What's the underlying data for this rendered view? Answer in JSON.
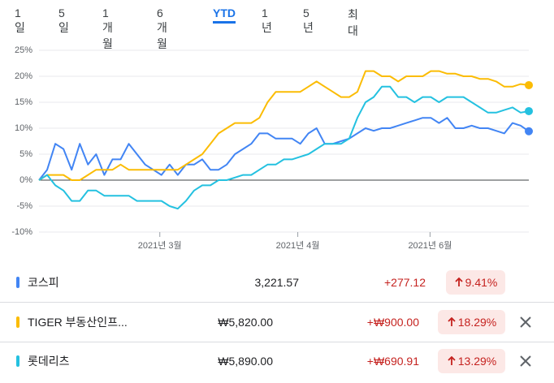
{
  "tabs": [
    "1일",
    "5일",
    "1개월",
    "6개월",
    "YTD",
    "1년",
    "5년",
    "최대"
  ],
  "active_tab_index": 4,
  "chart_data": {
    "type": "line",
    "xlim": [
      0,
      60
    ],
    "xticks": [
      {
        "value": 14.8,
        "label": "2021년 3월"
      },
      {
        "value": 31.7,
        "label": "2021년 4월"
      },
      {
        "value": 47.9,
        "label": "2021년 6월"
      }
    ],
    "ylim": [
      -10,
      25
    ],
    "yticks": [
      {
        "value": 25,
        "label": "25%"
      },
      {
        "value": 20,
        "label": "20%"
      },
      {
        "value": 15,
        "label": "15%"
      },
      {
        "value": 10,
        "label": "10%"
      },
      {
        "value": 5,
        "label": "5%"
      },
      {
        "value": 0,
        "label": "0%"
      },
      {
        "value": -5,
        "label": "-5%"
      },
      {
        "value": -10,
        "label": "-10%"
      }
    ],
    "grid": true,
    "series": [
      {
        "name": "코스피",
        "color": "#4285f4",
        "values": [
          0,
          2,
          7,
          6,
          2,
          7,
          3,
          5,
          1,
          4,
          4,
          7,
          5,
          3,
          2,
          1,
          3,
          1,
          3,
          3,
          4,
          2,
          2,
          3,
          5,
          6,
          7,
          9,
          9,
          8,
          8,
          8,
          7,
          9,
          10,
          7,
          7,
          7.5,
          8,
          9,
          10,
          9.5,
          10,
          10,
          10.5,
          11,
          11.5,
          12,
          12,
          11,
          12,
          10,
          10,
          10.5,
          10,
          10,
          9.5,
          9,
          11,
          10.5,
          9.41
        ]
      },
      {
        "name": "TIGER 부동산인프...",
        "color": "#fbbc04",
        "values": [
          0,
          1,
          1,
          1,
          0,
          0,
          1,
          2,
          2,
          2,
          3,
          2,
          2,
          2,
          2,
          2,
          2,
          2,
          3,
          4,
          5,
          7,
          9,
          10,
          11,
          11,
          11,
          12,
          15,
          17,
          17,
          17,
          17,
          18,
          19,
          18,
          17,
          16,
          16,
          17,
          21,
          21,
          20,
          20,
          19,
          20,
          20,
          20,
          21,
          21,
          20.5,
          20.5,
          20,
          20,
          19.5,
          19.5,
          19,
          18,
          18,
          18.5,
          18.29
        ]
      },
      {
        "name": "롯데리츠",
        "color": "#24c1e0",
        "values": [
          0,
          1,
          -1,
          -2,
          -4,
          -4,
          -2,
          -2,
          -3,
          -3,
          -3,
          -3,
          -4,
          -4,
          -4,
          -4,
          -5,
          -5.5,
          -4,
          -2,
          -1,
          -1,
          0,
          0,
          0.5,
          1,
          1,
          2,
          3,
          3,
          4,
          4,
          4.5,
          5,
          6,
          7,
          7,
          7,
          8,
          12,
          15,
          16,
          18,
          18,
          16,
          16,
          15,
          16,
          16,
          15,
          16,
          16,
          16,
          15,
          14,
          13,
          13,
          13.5,
          14,
          13,
          13.29
        ]
      }
    ]
  },
  "table": {
    "rows": [
      {
        "price": "3,221.57",
        "change": "+277.12",
        "percent": "9.41%",
        "removable": false
      },
      {
        "price": "₩5,820.00",
        "change": "+₩900.00",
        "percent": "18.29%",
        "removable": true
      },
      {
        "price": "₩5,890.00",
        "change": "+₩690.91",
        "percent": "13.29%",
        "removable": true
      }
    ]
  }
}
